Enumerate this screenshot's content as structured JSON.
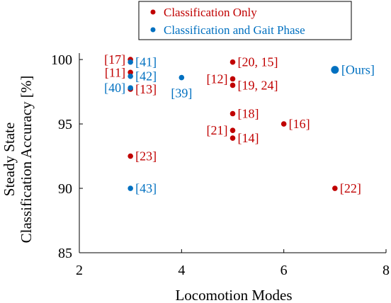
{
  "chart_data": {
    "type": "scatter",
    "title": "",
    "xlabel": "Locomotion Modes",
    "ylabel_lines": [
      "Steady State",
      "Classification Accuracy [%]"
    ],
    "xlim": [
      2,
      8
    ],
    "ylim": [
      85,
      100.5
    ],
    "xticks": [
      2,
      4,
      6,
      8
    ],
    "yticks": [
      85,
      90,
      95,
      100
    ],
    "grid": false,
    "legend_position": "top-center",
    "series": [
      {
        "name": "Classification Only",
        "color": "#c00000",
        "points": [
          {
            "x": 3,
            "y": 100.0,
            "label": "[17]",
            "side": "left"
          },
          {
            "x": 3,
            "y": 99.0,
            "label": "[11]",
            "side": "left"
          },
          {
            "x": 3,
            "y": 97.7,
            "label": "[13]",
            "side": "right"
          },
          {
            "x": 3,
            "y": 92.5,
            "label": "[23]",
            "side": "right"
          },
          {
            "x": 5,
            "y": 99.8,
            "label": "[20, 15]",
            "side": "right"
          },
          {
            "x": 5,
            "y": 98.5,
            "label": "[12]",
            "side": "left"
          },
          {
            "x": 5,
            "y": 98.0,
            "label": "[19, 24]",
            "side": "right"
          },
          {
            "x": 5,
            "y": 95.8,
            "label": "[18]",
            "side": "right"
          },
          {
            "x": 5,
            "y": 94.5,
            "label": "[21]",
            "side": "left"
          },
          {
            "x": 5,
            "y": 93.9,
            "label": "[14]",
            "side": "right"
          },
          {
            "x": 6,
            "y": 95.0,
            "label": "[16]",
            "side": "right"
          },
          {
            "x": 7,
            "y": 90.0,
            "label": "[22]",
            "side": "right"
          }
        ]
      },
      {
        "name": "Classification and Gait Phase",
        "color": "#0070c0",
        "points": [
          {
            "x": 3,
            "y": 99.8,
            "label": "[41]",
            "side": "right"
          },
          {
            "x": 3,
            "y": 98.7,
            "label": "[42]",
            "side": "right"
          },
          {
            "x": 3,
            "y": 97.8,
            "label": "[40]",
            "side": "left"
          },
          {
            "x": 4,
            "y": 98.6,
            "label": "[39]",
            "side": "below"
          },
          {
            "x": 3,
            "y": 90.0,
            "label": "[43]",
            "side": "right"
          },
          {
            "x": 7,
            "y": 99.2,
            "label": "[Ours]",
            "side": "right",
            "emphasis": true
          }
        ]
      }
    ]
  }
}
